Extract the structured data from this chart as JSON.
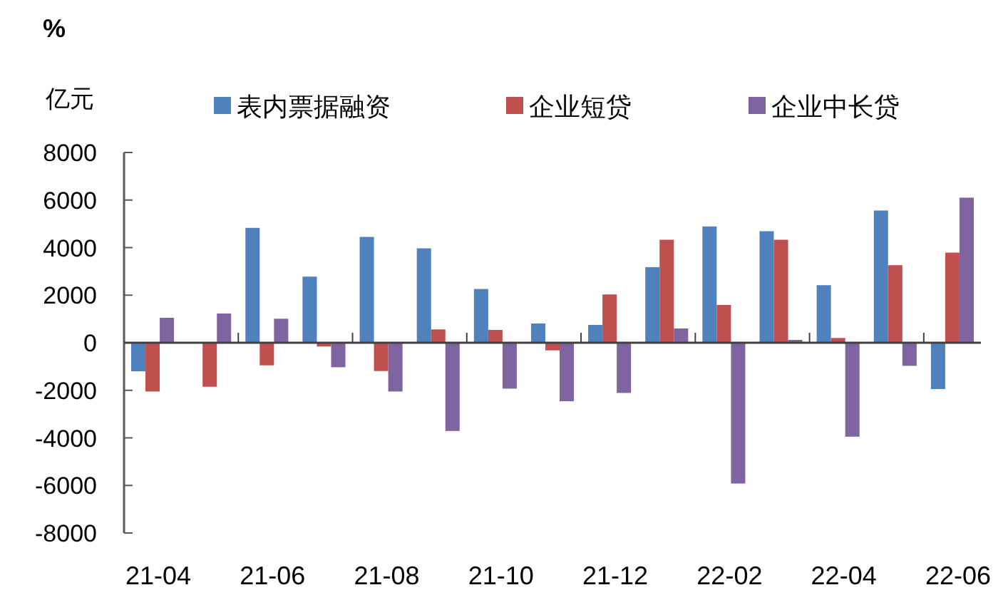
{
  "chart_data": {
    "type": "bar",
    "ylabel": "亿元",
    "annotations": [
      "%"
    ],
    "categories": [
      "21-04",
      null,
      "21-06",
      null,
      "21-08",
      null,
      "21-10",
      null,
      "21-12",
      null,
      "22-02",
      null,
      "22-04",
      null,
      "22-06"
    ],
    "series": [
      {
        "name": "表内票据融资",
        "color": "#4f81bd",
        "values": [
          -1200,
          0,
          4830,
          2780,
          4450,
          3970,
          2260,
          810,
          750,
          3180,
          4890,
          4690,
          2420,
          5560,
          -1950
        ]
      },
      {
        "name": "企业短贷",
        "color": "#c0504d",
        "values": [
          -2050,
          -1850,
          -950,
          -160,
          -1190,
          560,
          540,
          -320,
          2030,
          4330,
          1590,
          4330,
          200,
          3260,
          3790
        ]
      },
      {
        "name": "企业中长贷",
        "color": "#8064a2",
        "values": [
          1050,
          1230,
          1010,
          -1030,
          -2050,
          -3710,
          -1930,
          -2460,
          -2110,
          600,
          -5920,
          120,
          -3950,
          -970,
          6100
        ]
      }
    ],
    "ylim": [
      -8000,
      8000
    ],
    "yticks": [
      -8000,
      -6000,
      -4000,
      -2000,
      0,
      2000,
      4000,
      6000,
      8000
    ],
    "legend": "top"
  }
}
